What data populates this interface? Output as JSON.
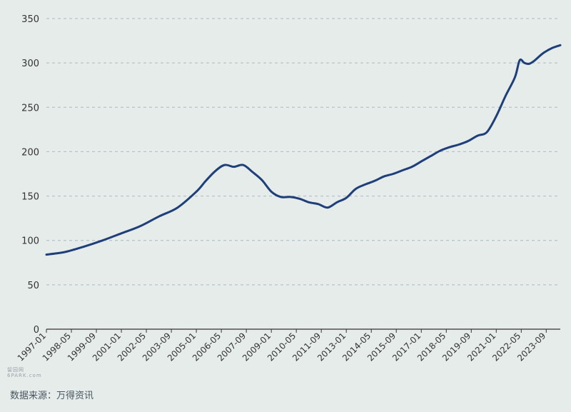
{
  "chart_data": {
    "type": "line",
    "title": "",
    "xlabel": "",
    "ylabel": "",
    "ylim": [
      0,
      350
    ],
    "yticks": [
      0,
      50,
      100,
      150,
      200,
      250,
      300,
      350
    ],
    "xlim": [
      "1997-01",
      "2024-06"
    ],
    "xticks": [
      "1997-01",
      "1998-05",
      "1999-09",
      "2001-01",
      "2002-05",
      "2003-09",
      "2005-01",
      "2006-05",
      "2007-09",
      "2009-01",
      "2010-05",
      "2011-09",
      "2013-01",
      "2014-05",
      "2015-09",
      "2017-01",
      "2018-05",
      "2019-09",
      "2021-01",
      "2022-05",
      "2023-09"
    ],
    "grid": "horizontal dashed",
    "legend": "none",
    "line_color": "#1f3f7a",
    "series": [
      {
        "x": [
          "1997-01",
          "1998-01",
          "1999-01",
          "2000-01",
          "2001-01",
          "2002-01",
          "2003-01",
          "2004-01",
          "2005-01",
          "2005-07",
          "2006-01",
          "2006-07",
          "2007-01",
          "2007-07",
          "2008-01",
          "2008-07",
          "2009-01",
          "2009-07",
          "2010-01",
          "2010-07",
          "2011-01",
          "2011-07",
          "2012-01",
          "2012-07",
          "2013-01",
          "2013-07",
          "2014-01",
          "2014-07",
          "2015-01",
          "2015-07",
          "2016-01",
          "2016-07",
          "2017-01",
          "2017-07",
          "2018-01",
          "2018-07",
          "2019-01",
          "2019-07",
          "2020-01",
          "2020-07",
          "2021-01",
          "2021-07",
          "2022-01",
          "2022-04",
          "2022-07",
          "2022-10",
          "2023-01",
          "2023-07",
          "2024-01",
          "2024-06"
        ],
        "values": [
          84,
          87,
          93,
          100,
          108,
          116,
          127,
          137,
          155,
          167,
          178,
          185,
          183,
          185,
          177,
          168,
          155,
          149,
          149,
          147,
          143,
          141,
          137,
          143,
          148,
          158,
          163,
          167,
          172,
          175,
          179,
          183,
          189,
          195,
          201,
          205,
          208,
          212,
          218,
          222,
          240,
          263,
          284,
          303,
          300,
          299,
          302,
          311,
          317,
          320
        ]
      }
    ]
  },
  "source_text": "数据来源：万得资讯",
  "watermark": {
    "line1": "留园网",
    "line2": "6PARK.com"
  }
}
